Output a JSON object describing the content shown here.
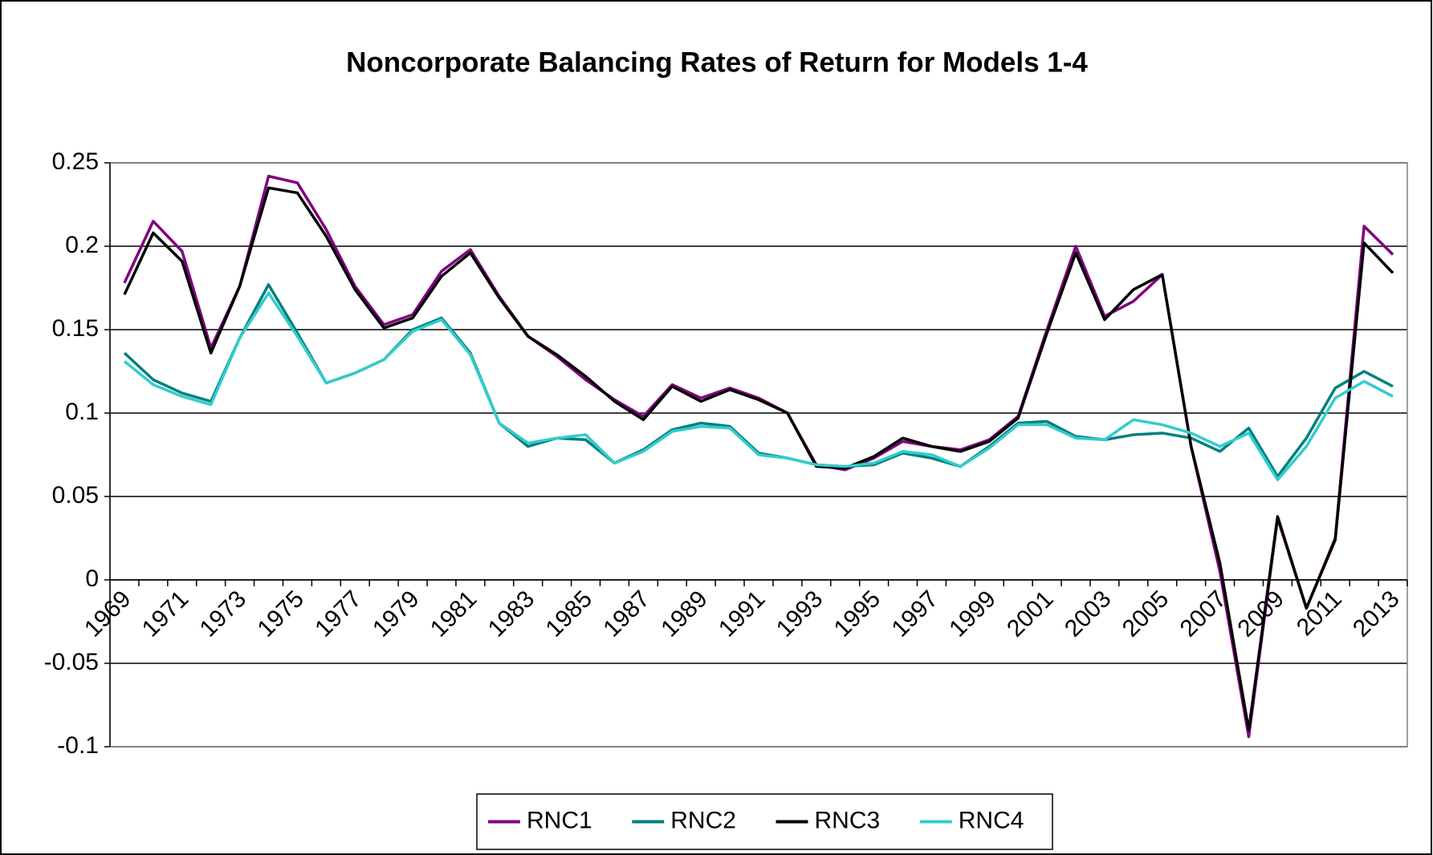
{
  "chart_data": {
    "type": "line",
    "title": "Noncorporate Balancing Rates of Return for Models 1-4",
    "categories": [
      "1969",
      null,
      "1971",
      null,
      "1973",
      null,
      "1975",
      null,
      "1977",
      null,
      "1979",
      null,
      "1981",
      null,
      "1983",
      null,
      "1985",
      null,
      "1987",
      null,
      "1989",
      null,
      "1991",
      null,
      "1993",
      null,
      "1995",
      null,
      "1997",
      null,
      "1999",
      null,
      "2001",
      null,
      "2003",
      null,
      "2005",
      null,
      "2007",
      null,
      "2009",
      null,
      "2011",
      null,
      "2013"
    ],
    "series": [
      {
        "name": "RNC1",
        "color": "#800080",
        "values": [
          0.178,
          0.215,
          0.197,
          0.139,
          0.176,
          0.242,
          0.238,
          0.21,
          0.176,
          0.153,
          0.159,
          0.185,
          0.198,
          0.17,
          0.146,
          0.134,
          0.12,
          0.108,
          0.098,
          0.117,
          0.109,
          0.115,
          0.109,
          0.1,
          0.069,
          0.066,
          0.073,
          0.083,
          0.08,
          0.078,
          0.084,
          0.098,
          0.15,
          0.2,
          0.158,
          0.167,
          0.183,
          0.08,
          0.005,
          -0.094,
          0.037,
          -0.017,
          0.025,
          0.212,
          0.195
        ]
      },
      {
        "name": "RNC2",
        "color": "#008080",
        "values": [
          0.136,
          0.12,
          0.112,
          0.107,
          0.145,
          0.177,
          0.148,
          0.118,
          0.124,
          0.132,
          0.15,
          0.157,
          0.136,
          0.094,
          0.08,
          0.085,
          0.084,
          0.07,
          0.078,
          0.09,
          0.094,
          0.092,
          0.076,
          0.073,
          0.069,
          0.068,
          0.069,
          0.076,
          0.073,
          0.068,
          0.08,
          0.094,
          0.095,
          0.086,
          0.084,
          0.087,
          0.088,
          0.085,
          0.077,
          0.091,
          0.062,
          0.085,
          0.115,
          0.125,
          0.116
        ]
      },
      {
        "name": "RNC3",
        "color": "#000000",
        "values": [
          0.171,
          0.208,
          0.191,
          0.136,
          0.176,
          0.235,
          0.232,
          0.206,
          0.174,
          0.151,
          0.157,
          0.182,
          0.196,
          0.169,
          0.146,
          0.135,
          0.122,
          0.107,
          0.096,
          0.116,
          0.107,
          0.114,
          0.108,
          0.1,
          0.068,
          0.067,
          0.074,
          0.085,
          0.08,
          0.077,
          0.083,
          0.097,
          0.148,
          0.196,
          0.156,
          0.174,
          0.183,
          0.08,
          0.01,
          -0.09,
          0.038,
          -0.017,
          0.024,
          0.202,
          0.184
        ]
      },
      {
        "name": "RNC4",
        "color": "#33CCCC",
        "values": [
          0.131,
          0.117,
          0.11,
          0.105,
          0.145,
          0.172,
          0.146,
          0.118,
          0.124,
          0.132,
          0.149,
          0.156,
          0.135,
          0.094,
          0.082,
          0.085,
          0.087,
          0.07,
          0.077,
          0.089,
          0.092,
          0.091,
          0.075,
          0.073,
          0.069,
          0.068,
          0.07,
          0.077,
          0.075,
          0.068,
          0.079,
          0.093,
          0.093,
          0.085,
          0.084,
          0.096,
          0.093,
          0.088,
          0.08,
          0.088,
          0.06,
          0.08,
          0.109,
          0.119,
          0.11
        ]
      }
    ],
    "ylim": [
      -0.1,
      0.25
    ],
    "yticks": [
      -0.1,
      -0.05,
      0,
      0.05,
      0.1,
      0.15,
      0.2,
      0.25
    ],
    "grid": true,
    "legend": "bottom"
  }
}
